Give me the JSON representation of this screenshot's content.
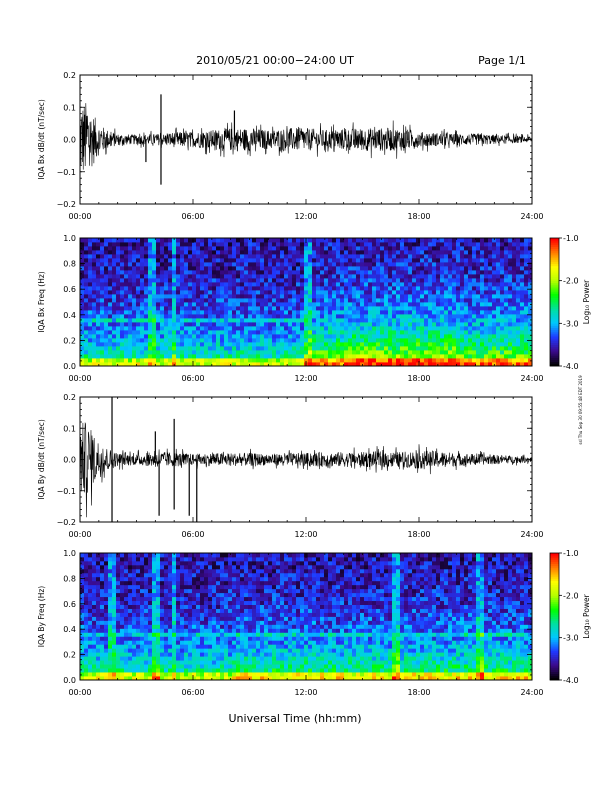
{
  "header": {
    "date_label": "2010/05/21  00:00−24:00 UT",
    "page_label": "Page 1/1"
  },
  "side_stamp": "ssl Thu Sep 30 09:55:48 EDT 2019",
  "xlabel": "Universal Time (hh:mm)",
  "x_ticks": [
    "00:00",
    "06:00",
    "12:00",
    "18:00",
    "24:00"
  ],
  "colorbar": {
    "label": "Log₁₀ Power",
    "ticks": [
      "-1.0",
      "-2.0",
      "-3.0",
      "-4.0"
    ],
    "range": [
      -4.0,
      -1.0
    ],
    "colors": [
      "#000000",
      "#3b0a8c",
      "#1f39ff",
      "#00c8ff",
      "#00e0a0",
      "#00ff00",
      "#b4ff00",
      "#ffff00",
      "#ff8000",
      "#ff0000"
    ]
  },
  "chart_data": [
    {
      "type": "line",
      "ylabel": "IQA Bx dB/dt (nT/sec)",
      "ylim": [
        -0.2,
        0.2
      ],
      "y_ticks": [
        "0.2",
        "0.1",
        "0.0",
        "−0.1",
        "−0.2"
      ],
      "xlim": [
        0,
        24
      ],
      "envelope": {
        "x": [
          0,
          0.3,
          0.6,
          1.0,
          1.5,
          2.0,
          3.0,
          4.0,
          4.5,
          5.0,
          6.0,
          7.0,
          8.0,
          9.0,
          10.0,
          11.0,
          12.0,
          13.0,
          14.0,
          15.0,
          16.0,
          17.0,
          18.0,
          19.0,
          20.0,
          21.0,
          22.0,
          23.0,
          24.0
        ],
        "upper": [
          0.2,
          0.2,
          0.15,
          0.08,
          0.05,
          0.03,
          0.025,
          0.03,
          0.03,
          0.04,
          0.04,
          0.05,
          0.06,
          0.06,
          0.05,
          0.06,
          0.06,
          0.05,
          0.055,
          0.06,
          0.06,
          0.06,
          0.04,
          0.035,
          0.03,
          0.03,
          0.025,
          0.02,
          0.015
        ],
        "lower": [
          -0.2,
          -0.2,
          -0.15,
          -0.08,
          -0.05,
          -0.03,
          -0.025,
          -0.03,
          -0.03,
          -0.04,
          -0.04,
          -0.05,
          -0.06,
          -0.06,
          -0.05,
          -0.06,
          -0.06,
          -0.05,
          -0.055,
          -0.06,
          -0.06,
          -0.06,
          -0.04,
          -0.035,
          -0.03,
          -0.03,
          -0.025,
          -0.02,
          -0.015
        ]
      },
      "spikes": [
        {
          "x": 4.3,
          "y": 0.14
        },
        {
          "x": 4.3,
          "y": -0.14
        },
        {
          "x": 8.2,
          "y": 0.09
        },
        {
          "x": 3.5,
          "y": -0.07
        }
      ]
    },
    {
      "type": "heatmap",
      "ylabel": "IQA Bx Freq (Hz)",
      "ylim": [
        0.0,
        1.0
      ],
      "y_ticks": [
        "1.0",
        "0.8",
        "0.6",
        "0.4",
        "0.2",
        "0.0"
      ],
      "xlim": [
        0,
        24
      ],
      "colorbar_range": [
        -4.0,
        -1.0
      ],
      "line_freq": 0.37,
      "line_extent": [
        0,
        12
      ],
      "vertical_events": [
        3.8,
        5.0,
        12.1
      ]
    },
    {
      "type": "line",
      "ylabel": "IQA By dB/dt (nT/sec)",
      "ylim": [
        -0.2,
        0.2
      ],
      "y_ticks": [
        "0.2",
        "0.1",
        "0.0",
        "−0.1",
        "−0.2"
      ],
      "xlim": [
        0,
        24
      ],
      "envelope": {
        "x": [
          0,
          0.3,
          0.6,
          1.0,
          1.5,
          2.0,
          3.0,
          4.0,
          5.0,
          6.0,
          7.0,
          8.0,
          9.0,
          10.0,
          11.0,
          12.0,
          13.0,
          14.0,
          15.0,
          16.0,
          17.0,
          18.0,
          19.0,
          20.0,
          21.0,
          22.0,
          23.0,
          24.0
        ],
        "upper": [
          0.2,
          0.2,
          0.16,
          0.1,
          0.06,
          0.035,
          0.03,
          0.04,
          0.04,
          0.03,
          0.035,
          0.035,
          0.035,
          0.03,
          0.035,
          0.035,
          0.04,
          0.04,
          0.04,
          0.045,
          0.04,
          0.05,
          0.045,
          0.035,
          0.03,
          0.025,
          0.02,
          0.015
        ],
        "lower": [
          -0.2,
          -0.2,
          -0.16,
          -0.1,
          -0.06,
          -0.035,
          -0.03,
          -0.04,
          -0.04,
          -0.03,
          -0.035,
          -0.035,
          -0.035,
          -0.03,
          -0.035,
          -0.035,
          -0.04,
          -0.04,
          -0.04,
          -0.045,
          -0.04,
          -0.05,
          -0.045,
          -0.035,
          -0.03,
          -0.025,
          -0.02,
          -0.015
        ]
      },
      "spikes": [
        {
          "x": 1.7,
          "y": 0.2
        },
        {
          "x": 1.7,
          "y": -0.2
        },
        {
          "x": 4.2,
          "y": -0.18
        },
        {
          "x": 5.0,
          "y": 0.13
        },
        {
          "x": 5.0,
          "y": -0.16
        },
        {
          "x": 5.8,
          "y": -0.18
        },
        {
          "x": 6.2,
          "y": -0.2
        },
        {
          "x": 4.0,
          "y": 0.09
        }
      ]
    },
    {
      "type": "heatmap",
      "ylabel": "IQA By Freq (Hz)",
      "ylim": [
        0.0,
        1.0
      ],
      "y_ticks": [
        "1.0",
        "0.8",
        "0.6",
        "0.4",
        "0.2",
        "0.0"
      ],
      "xlim": [
        0,
        24
      ],
      "colorbar_range": [
        -4.0,
        -1.0
      ],
      "line_freq": 0.37,
      "line_extent": [
        0,
        24
      ],
      "vertical_events": [
        1.7,
        4.0,
        5.0,
        16.8,
        21.2
      ]
    }
  ]
}
